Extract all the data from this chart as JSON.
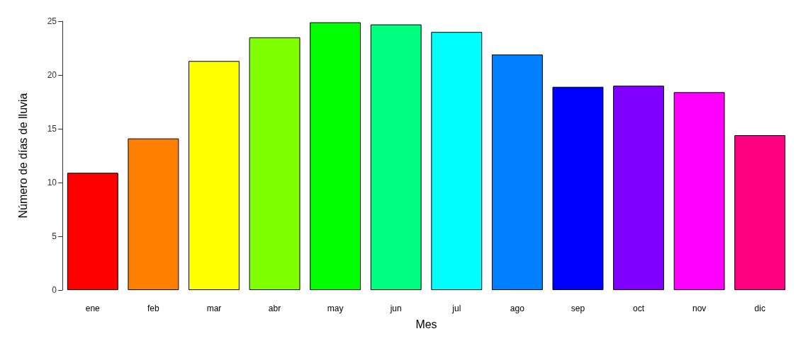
{
  "chart_data": {
    "type": "bar",
    "xlabel": "Mes",
    "ylabel": "Número de días de lluvia",
    "categories": [
      "ene",
      "feb",
      "mar",
      "abr",
      "may",
      "jun",
      "jul",
      "ago",
      "sep",
      "oct",
      "nov",
      "dic"
    ],
    "values": [
      10.9,
      14.1,
      21.3,
      23.5,
      24.9,
      24.7,
      24.0,
      21.9,
      18.9,
      19.0,
      18.4,
      14.4
    ],
    "colors": [
      "#ff0000",
      "#ff8000",
      "#ffff00",
      "#80ff00",
      "#00ff00",
      "#00ff80",
      "#00ffff",
      "#0080ff",
      "#0000ff",
      "#8000ff",
      "#ff00ff",
      "#ff0080"
    ],
    "ylim": [
      0,
      25
    ],
    "yticks": [
      0,
      5,
      10,
      15,
      20,
      25
    ],
    "grid": false
  }
}
